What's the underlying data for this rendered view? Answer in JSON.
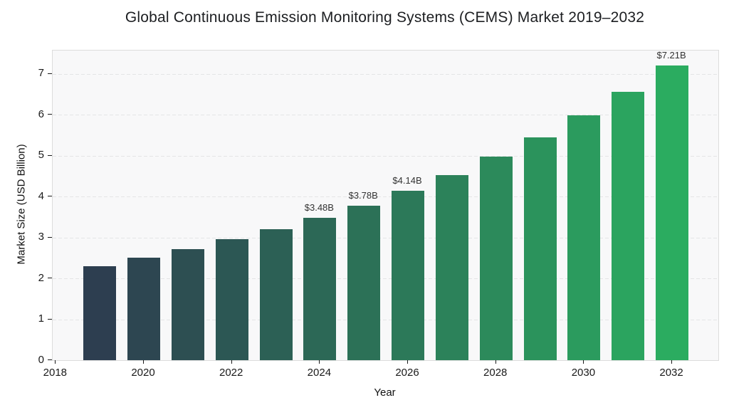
{
  "chart_data": {
    "type": "bar",
    "title": "Global Continuous Emission Monitoring Systems (CEMS) Market 2019–2032",
    "xlabel": "Year",
    "ylabel": "Market Size (USD Billion)",
    "categories": [
      "2019",
      "2020",
      "2021",
      "2022",
      "2023",
      "2024",
      "2025",
      "2026",
      "2027",
      "2028",
      "2029",
      "2030",
      "2031",
      "2032"
    ],
    "values": [
      2.3,
      2.5,
      2.71,
      2.95,
      3.2,
      3.48,
      3.78,
      4.14,
      4.53,
      4.97,
      5.45,
      5.98,
      6.56,
      7.21
    ],
    "bar_value_labels": [
      null,
      null,
      null,
      null,
      null,
      "$3.48B",
      "$3.78B",
      "$4.14B",
      null,
      null,
      null,
      null,
      null,
      "$7.21B"
    ],
    "bar_colors": [
      "#2d3e50",
      "#2d4651",
      "#2d4f52",
      "#2c5754",
      "#2c6055",
      "#2c6856",
      "#2c7157",
      "#2c7959",
      "#2c825a",
      "#2c8a5b",
      "#2b935c",
      "#2b9b5e",
      "#2ba45f",
      "#2bac60"
    ],
    "x_ticks": [
      2018,
      2020,
      2022,
      2024,
      2026,
      2028,
      2030,
      2032
    ],
    "y_ticks": [
      0,
      1,
      2,
      3,
      4,
      5,
      6,
      7
    ],
    "xlim": [
      2017.93,
      2033.05
    ],
    "ylim": [
      0,
      7.57
    ],
    "grid": {
      "horizontal": true,
      "vertical": false,
      "style": "dashed"
    },
    "legend": "none",
    "colors": {
      "page_bg": "#ffffff",
      "plot_bg": "#f8f8f9",
      "grid": "#e4e5e6",
      "axis_border": "#dcdcdc",
      "tick": "#1a1a1a",
      "title_text": "#1c1e21",
      "value_label_text": "#333333"
    }
  }
}
